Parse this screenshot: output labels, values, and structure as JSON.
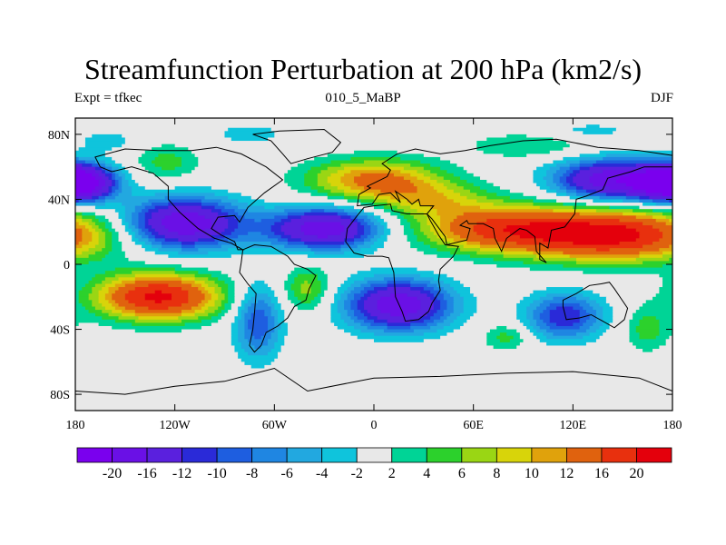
{
  "chart_data": {
    "type": "heatmap",
    "title": "Streamfunction Perturbation at 200 hPa (km2/s)",
    "left_string": "Expt = tfkec",
    "center_string": "010_5_MaBP",
    "right_string": "DJF",
    "xlim": [
      -180,
      180
    ],
    "ylim": [
      -90,
      90
    ],
    "x_ticks": [
      {
        "value": -180,
        "label": "180"
      },
      {
        "value": -120,
        "label": "120W"
      },
      {
        "value": -60,
        "label": "60W"
      },
      {
        "value": 0,
        "label": "0"
      },
      {
        "value": 60,
        "label": "60E"
      },
      {
        "value": 120,
        "label": "120E"
      },
      {
        "value": 180,
        "label": "180"
      }
    ],
    "y_ticks": [
      {
        "value": 80,
        "label": "80N"
      },
      {
        "value": 40,
        "label": "40N"
      },
      {
        "value": 0,
        "label": "0"
      },
      {
        "value": -40,
        "label": "40S"
      },
      {
        "value": -80,
        "label": "80S"
      }
    ],
    "levels": [
      -20,
      -16,
      -12,
      -10,
      -8,
      -6,
      -4,
      -2,
      2,
      4,
      6,
      8,
      10,
      12,
      16,
      20
    ],
    "colors": [
      "#7a00ee",
      "#6a10e6",
      "#5a20de",
      "#2a2ad8",
      "#1e5ee0",
      "#1f86e2",
      "#22a8e0",
      "#0fc4dc",
      "#e8e8e8",
      "#00d496",
      "#2cd12c",
      "#9ad614",
      "#d8d40a",
      "#e0a20c",
      "#e0620e",
      "#e8300e",
      "#e4000c"
    ],
    "features": [
      {
        "lon": 145,
        "lat": 18,
        "amp": 21,
        "wx": 40,
        "wy": 11
      },
      {
        "lon": 75,
        "lat": 22,
        "amp": 15,
        "wx": 35,
        "wy": 10
      },
      {
        "lon": -130,
        "lat": -20,
        "amp": 21,
        "wx": 26,
        "wy": 10
      },
      {
        "lon": 0,
        "lat": 52,
        "amp": 13,
        "wx": 28,
        "wy": 9
      },
      {
        "lon": 35,
        "lat": 40,
        "amp": 7,
        "wx": 25,
        "wy": 8
      },
      {
        "lon": -125,
        "lat": 63,
        "amp": 5,
        "wx": 14,
        "wy": 8
      },
      {
        "lon": 95,
        "lat": 73,
        "amp": 4,
        "wx": 28,
        "wy": 6
      },
      {
        "lon": -40,
        "lat": -15,
        "amp": 7,
        "wx": 10,
        "wy": 10
      },
      {
        "lon": 80,
        "lat": -45,
        "amp": 5,
        "wx": 10,
        "wy": 6
      },
      {
        "lon": 165,
        "lat": -40,
        "amp": 5,
        "wx": 10,
        "wy": 10
      },
      {
        "lon": -115,
        "lat": 25,
        "amp": -20,
        "wx": 25,
        "wy": 11
      },
      {
        "lon": -30,
        "lat": 22,
        "amp": -19,
        "wx": 24,
        "wy": 9
      },
      {
        "lon": 140,
        "lat": 52,
        "amp": -18,
        "wx": 22,
        "wy": 9
      },
      {
        "lon": -180,
        "lat": 50,
        "amp": -14,
        "wx": 16,
        "wy": 8
      },
      {
        "lon": 180,
        "lat": 50,
        "amp": -14,
        "wx": 16,
        "wy": 8
      },
      {
        "lon": 15,
        "lat": -25,
        "amp": -19,
        "wx": 22,
        "wy": 11
      },
      {
        "lon": 115,
        "lat": -32,
        "amp": -12,
        "wx": 16,
        "wy": 10
      },
      {
        "lon": -70,
        "lat": -35,
        "amp": -10,
        "wx": 10,
        "wy": 16
      },
      {
        "lon": -75,
        "lat": 80,
        "amp": -3,
        "wx": 18,
        "wy": 5
      },
      {
        "lon": -160,
        "lat": 76,
        "amp": -3,
        "wx": 14,
        "wy": 5
      },
      {
        "lon": 130,
        "lat": 82,
        "amp": -3,
        "wx": 20,
        "wy": 4
      }
    ],
    "continents": [
      [
        [
          -168,
          66
        ],
        [
          -150,
          71
        ],
        [
          -130,
          70
        ],
        [
          -110,
          70
        ],
        [
          -95,
          72
        ],
        [
          -80,
          68
        ],
        [
          -65,
          60
        ],
        [
          -55,
          52
        ],
        [
          -66,
          44
        ],
        [
          -76,
          35
        ],
        [
          -81,
          26
        ],
        [
          -84,
          30
        ],
        [
          -94,
          29
        ],
        [
          -98,
          22
        ],
        [
          -92,
          18
        ],
        [
          -84,
          14
        ],
        [
          -82,
          9
        ],
        [
          -79,
          9
        ],
        [
          -86,
          13
        ],
        [
          -96,
          16
        ],
        [
          -106,
          22
        ],
        [
          -117,
          32
        ],
        [
          -124,
          40
        ],
        [
          -124,
          48
        ],
        [
          -133,
          56
        ],
        [
          -146,
          60
        ],
        [
          -158,
          57
        ],
        [
          -165,
          60
        ]
      ],
      [
        [
          -79,
          9
        ],
        [
          -72,
          12
        ],
        [
          -62,
          11
        ],
        [
          -52,
          5
        ],
        [
          -48,
          0
        ],
        [
          -40,
          -3
        ],
        [
          -35,
          -7
        ],
        [
          -39,
          -15
        ],
        [
          -41,
          -22
        ],
        [
          -48,
          -26
        ],
        [
          -52,
          -33
        ],
        [
          -58,
          -38
        ],
        [
          -65,
          -42
        ],
        [
          -68,
          -50
        ],
        [
          -72,
          -54
        ],
        [
          -75,
          -50
        ],
        [
          -73,
          -40
        ],
        [
          -72,
          -30
        ],
        [
          -71,
          -18
        ],
        [
          -76,
          -12
        ],
        [
          -81,
          -5
        ],
        [
          -80,
          1
        ]
      ],
      [
        [
          -73,
          80
        ],
        [
          -57,
          82
        ],
        [
          -30,
          83
        ],
        [
          -20,
          75
        ],
        [
          -25,
          69
        ],
        [
          -40,
          65
        ],
        [
          -50,
          62
        ],
        [
          -55,
          68
        ],
        [
          -62,
          76
        ]
      ],
      [
        [
          -10,
          36
        ],
        [
          -9,
          43
        ],
        [
          -2,
          47
        ],
        [
          -4,
          48
        ],
        [
          2,
          51
        ],
        [
          8,
          54
        ],
        [
          10,
          58
        ],
        [
          5,
          62
        ],
        [
          14,
          68
        ],
        [
          25,
          71
        ],
        [
          40,
          68
        ],
        [
          55,
          70
        ],
        [
          70,
          73
        ],
        [
          90,
          76
        ],
        [
          110,
          77
        ],
        [
          135,
          72
        ],
        [
          160,
          70
        ],
        [
          180,
          67
        ],
        [
          180,
          60
        ],
        [
          163,
          60
        ],
        [
          155,
          57
        ],
        [
          141,
          53
        ],
        [
          138,
          46
        ],
        [
          128,
          42
        ],
        [
          122,
          40
        ],
        [
          121,
          31
        ],
        [
          115,
          23
        ],
        [
          107,
          21
        ],
        [
          105,
          10
        ],
        [
          100,
          13
        ],
        [
          100,
          3
        ],
        [
          104,
          1
        ],
        [
          98,
          8
        ],
        [
          97,
          17
        ],
        [
          92,
          21
        ],
        [
          88,
          22
        ],
        [
          80,
          16
        ],
        [
          77,
          8
        ],
        [
          73,
          16
        ],
        [
          72,
          22
        ],
        [
          66,
          25
        ],
        [
          57,
          25
        ],
        [
          56,
          27
        ],
        [
          52,
          24
        ],
        [
          58,
          22
        ],
        [
          56,
          15
        ],
        [
          44,
          12
        ],
        [
          43,
          17
        ],
        [
          35,
          28
        ],
        [
          32,
          31
        ],
        [
          36,
          36
        ],
        [
          28,
          36
        ],
        [
          27,
          40
        ],
        [
          23,
          37
        ],
        [
          20,
          40
        ],
        [
          13,
          45
        ],
        [
          16,
          38
        ],
        [
          10,
          44
        ],
        [
          3,
          43
        ],
        [
          -1,
          37
        ]
      ],
      [
        [
          -17,
          14
        ],
        [
          -16,
          22
        ],
        [
          -10,
          30
        ],
        [
          -6,
          35
        ],
        [
          0,
          36
        ],
        [
          10,
          37
        ],
        [
          11,
          33
        ],
        [
          20,
          31
        ],
        [
          32,
          31
        ],
        [
          34,
          27
        ],
        [
          39,
          18
        ],
        [
          43,
          12
        ],
        [
          51,
          11
        ],
        [
          48,
          5
        ],
        [
          40,
          -3
        ],
        [
          39,
          -10
        ],
        [
          40,
          -16
        ],
        [
          35,
          -24
        ],
        [
          33,
          -29
        ],
        [
          27,
          -34
        ],
        [
          19,
          -35
        ],
        [
          17,
          -29
        ],
        [
          13,
          -20
        ],
        [
          12,
          -5
        ],
        [
          9,
          4
        ],
        [
          5,
          5
        ],
        [
          -4,
          5
        ],
        [
          -12,
          7
        ]
      ],
      [
        [
          114,
          -22
        ],
        [
          122,
          -18
        ],
        [
          130,
          -13
        ],
        [
          137,
          -12
        ],
        [
          142,
          -11
        ],
        [
          145,
          -15
        ],
        [
          149,
          -21
        ],
        [
          153,
          -27
        ],
        [
          151,
          -34
        ],
        [
          145,
          -39
        ],
        [
          138,
          -35
        ],
        [
          131,
          -31
        ],
        [
          124,
          -33
        ],
        [
          116,
          -34
        ],
        [
          114,
          -26
        ]
      ],
      [
        [
          -180,
          -78
        ],
        [
          -150,
          -80
        ],
        [
          -120,
          -75
        ],
        [
          -90,
          -72
        ],
        [
          -60,
          -64
        ],
        [
          -40,
          -78
        ],
        [
          0,
          -70
        ],
        [
          40,
          -69
        ],
        [
          80,
          -67
        ],
        [
          120,
          -66
        ],
        [
          160,
          -70
        ],
        [
          180,
          -78
        ],
        [
          180,
          -90
        ],
        [
          -180,
          -90
        ]
      ]
    ]
  }
}
